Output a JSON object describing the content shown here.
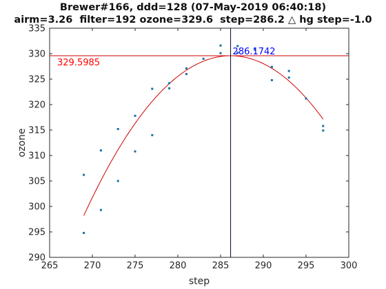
{
  "chart_data": {
    "type": "scatter",
    "title_line1": "Brewer#166, ddd=128 (07-May-2019 06:40:18)",
    "title_line2": "airm=3.26  filter=192 ozone=329.6  step=286.2 △ hg step=-1.0",
    "xlabel": "step",
    "ylabel": "ozone",
    "xlim": [
      265,
      300
    ],
    "ylim": [
      290,
      335
    ],
    "xticks": [
      265,
      270,
      275,
      280,
      285,
      290,
      295,
      300
    ],
    "yticks": [
      290,
      295,
      300,
      305,
      310,
      315,
      320,
      325,
      330,
      335
    ],
    "grid": false,
    "points": [
      {
        "x": 269,
        "y": 306.2
      },
      {
        "x": 269,
        "y": 294.8
      },
      {
        "x": 271,
        "y": 311.0
      },
      {
        "x": 271,
        "y": 299.3
      },
      {
        "x": 273,
        "y": 315.2
      },
      {
        "x": 273,
        "y": 305.0
      },
      {
        "x": 275,
        "y": 317.8
      },
      {
        "x": 275,
        "y": 310.8
      },
      {
        "x": 277,
        "y": 323.1
      },
      {
        "x": 277,
        "y": 314.0
      },
      {
        "x": 279,
        "y": 324.2
      },
      {
        "x": 279,
        "y": 323.2
      },
      {
        "x": 281,
        "y": 327.1
      },
      {
        "x": 281,
        "y": 326.0
      },
      {
        "x": 283,
        "y": 329.0
      },
      {
        "x": 285,
        "y": 331.6
      },
      {
        "x": 285,
        "y": 330.1
      },
      {
        "x": 287,
        "y": 331.5
      },
      {
        "x": 287,
        "y": 330.2
      },
      {
        "x": 289,
        "y": 330.8
      },
      {
        "x": 291,
        "y": 327.4
      },
      {
        "x": 291,
        "y": 324.8
      },
      {
        "x": 293,
        "y": 326.6
      },
      {
        "x": 293,
        "y": 325.3
      },
      {
        "x": 295,
        "y": 321.2
      },
      {
        "x": 297,
        "y": 315.8
      },
      {
        "x": 297,
        "y": 314.9
      }
    ],
    "fit": {
      "type": "quadratic",
      "vertex_x": 286.1742,
      "vertex_y": 329.5985,
      "x_range": [
        269,
        297
      ],
      "y_at_start": 298.2
    },
    "hline_y": 329.5985,
    "vline_x": 286.1742,
    "annotations": [
      {
        "text": "329.5985",
        "color": "#ff0000"
      },
      {
        "text": "286.1742",
        "color": "#0000ff"
      }
    ],
    "colors": {
      "points": "#1a6fa8",
      "fit": "#cc0000",
      "hline": "#cc0000",
      "vline": "#000033",
      "axis": "#262626"
    }
  }
}
